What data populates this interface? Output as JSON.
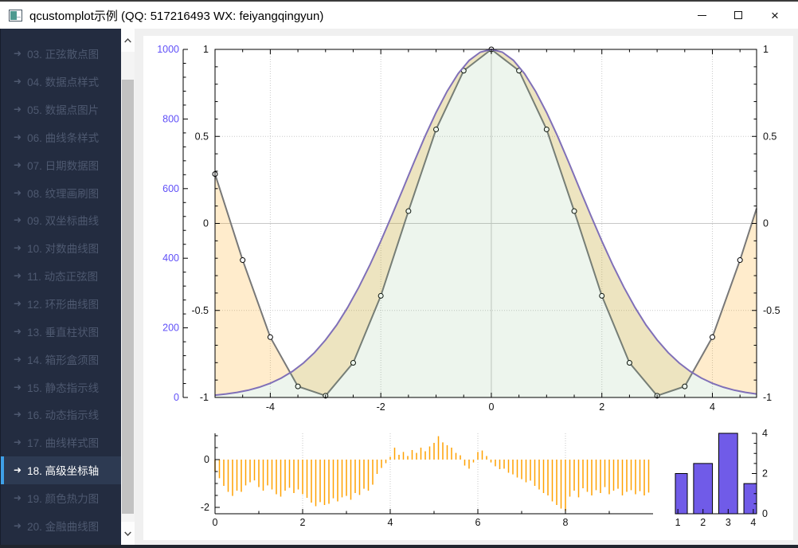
{
  "window": {
    "title": "qcustomplot示例 (QQ: 517216493 WX: feiyangqingyun)",
    "controls": [
      "minimize",
      "maximize",
      "close"
    ],
    "close_glyph": "×"
  },
  "sidebar": {
    "arrow_glyph": "➜",
    "colors": {
      "bg": "#232c40",
      "item_text": "#4e5970",
      "selected_bg": "#2d3a52",
      "selected_text": "#ffffff",
      "accent": "#3fa0e8"
    },
    "items": [
      {
        "label": "03. 正弦散点图",
        "selected": false
      },
      {
        "label": "04. 数据点样式",
        "selected": false
      },
      {
        "label": "05. 数据点图片",
        "selected": false
      },
      {
        "label": "06. 曲线条样式",
        "selected": false
      },
      {
        "label": "07. 日期数据图",
        "selected": false
      },
      {
        "label": "08. 纹理画刷图",
        "selected": false
      },
      {
        "label": "09. 双坐标曲线",
        "selected": false
      },
      {
        "label": "10. 对数曲线图",
        "selected": false
      },
      {
        "label": "11. 动态正弦图",
        "selected": false
      },
      {
        "label": "12. 环形曲线图",
        "selected": false
      },
      {
        "label": "13. 垂直柱状图",
        "selected": false
      },
      {
        "label": "14. 箱形盒须图",
        "selected": false
      },
      {
        "label": "15. 静态指示线",
        "selected": false
      },
      {
        "label": "16. 动态指示线",
        "selected": false
      },
      {
        "label": "17. 曲线样式图",
        "selected": false
      },
      {
        "label": "18. 高级坐标轴",
        "selected": true
      },
      {
        "label": "19. 颜色热力图",
        "selected": false
      },
      {
        "label": "20. 金融曲线图",
        "selected": false
      }
    ]
  },
  "chart_data": [
    {
      "type": "line",
      "name": "main-advanced-axes-plot",
      "x_range": [
        -5,
        4.8
      ],
      "x_ticks": [
        -4,
        -2,
        0,
        2,
        4
      ],
      "x_tick_labels": [
        "-4",
        "-2",
        "0",
        "2",
        "4"
      ],
      "left_inner_axis": {
        "range": [
          -1,
          1
        ],
        "ticks": [
          1,
          0.5,
          0,
          -0.5,
          -1
        ],
        "labels": [
          "1",
          "0.5",
          "0",
          "-0.5",
          "-1"
        ]
      },
      "left_outer_axis": {
        "range": [
          0,
          1000
        ],
        "ticks": [
          1000,
          800,
          600,
          400,
          200,
          0
        ],
        "labels": [
          "1000",
          "800",
          "600",
          "400",
          "200",
          "0"
        ],
        "label_color": "#6050F8"
      },
      "right_axis": {
        "ticks": [
          1,
          0.5,
          0,
          -0.5,
          -1
        ],
        "labels": [
          "1",
          "0.5",
          "0",
          "-0.5",
          "-1"
        ]
      },
      "channel_fill": "rgba(255,161,0,0.2)",
      "grid": "dotted, solid zero lines",
      "series": [
        {
          "name": "cos",
          "axis": "left_inner",
          "pen": "#787878",
          "marker": "circle-white-black-edge",
          "x": [
            -5,
            -4.5,
            -4,
            -3.5,
            -3,
            -2.5,
            -2,
            -1.5,
            -1,
            -0.5,
            0,
            0.5,
            1,
            1.5,
            2,
            2.5,
            3,
            3.5,
            4,
            4.5,
            5
          ],
          "y": [
            0.2837,
            -0.2108,
            -0.6536,
            -0.9365,
            -0.99,
            -0.8011,
            -0.4161,
            0.0707,
            0.5403,
            0.8776,
            1,
            0.8776,
            0.5403,
            0.0707,
            -0.4161,
            -0.8011,
            -0.99,
            -0.9365,
            -0.6536,
            -0.2108,
            0.2837
          ]
        },
        {
          "name": "gauss",
          "axis": "left_outer",
          "pen": "#8070B8",
          "fill": "rgba(110,170,110,0.12)",
          "x": [
            -5,
            -4.8,
            -4.6,
            -4.4,
            -4.2,
            -4,
            -3.8,
            -3.6,
            -3.4,
            -3.2,
            -3,
            -2.8,
            -2.6,
            -2.4,
            -2.2,
            -2,
            -1.8,
            -1.6,
            -1.4,
            -1.2,
            -1,
            -0.8,
            -0.6,
            -0.4,
            -0.2,
            0,
            0.2,
            0.4,
            0.6,
            0.8,
            1,
            1.2,
            1.4,
            1.6,
            1.8,
            2,
            2.2,
            2.4,
            2.6,
            2.8,
            3,
            3.2,
            3.4,
            3.6,
            3.8,
            4,
            4.2,
            4.4,
            4.6,
            4.8
          ],
          "y": [
            6.7,
            10,
            14.5,
            20.8,
            29.4,
            40.8,
            55.7,
            74.9,
            99,
            128.9,
            165.3,
            207.9,
            258.7,
            316.2,
            379.9,
            449.3,
            523,
            598.8,
            675.7,
            750.1,
            818.7,
            879.7,
            930.5,
            968.5,
            992,
            1000,
            992,
            968.5,
            930.5,
            879.7,
            818.7,
            750.1,
            675.7,
            598.8,
            523,
            449.3,
            379.9,
            316.2,
            258.7,
            207.9,
            165.3,
            128.9,
            99,
            74.9,
            55.7,
            40.8,
            29.4,
            20.8,
            14.5,
            10
          ]
        }
      ]
    },
    {
      "type": "impulse",
      "name": "random-walk-stem-subplot",
      "pen": "#FFA100",
      "x_range": [
        0,
        10
      ],
      "y_range": [
        -2.3,
        1.1
      ],
      "x_ticks": [
        0,
        2,
        4,
        6,
        8
      ],
      "x_tick_labels": [
        "0",
        "2",
        "4",
        "6",
        "8"
      ],
      "y_ticks": [
        0,
        -2
      ],
      "y_tick_labels": [
        "0",
        "-2"
      ],
      "x_start": 0,
      "x_step": 0.1,
      "values": [
        -0.5,
        -0.78,
        -1.1,
        -1.35,
        -1.52,
        -1.3,
        -1.35,
        -1.08,
        -0.95,
        -0.87,
        -1.15,
        -1.3,
        -1.08,
        -1.25,
        -1.45,
        -1.55,
        -1.3,
        -1.18,
        -1.4,
        -1.25,
        -1.45,
        -1.6,
        -1.8,
        -1.95,
        -1.78,
        -1.9,
        -1.85,
        -1.62,
        -1.75,
        -1.58,
        -1.52,
        -1.68,
        -1.4,
        -1.48,
        -1.22,
        -1.3,
        -1.05,
        -0.6,
        -0.35,
        -0.15,
        0.12,
        0.5,
        0.2,
        0.32,
        0.15,
        0.4,
        0.28,
        0.5,
        0.35,
        0.55,
        0.7,
        0.98,
        0.72,
        0.6,
        0.5,
        0.28,
        0.18,
        -0.25,
        -0.38,
        -0.12,
        0.32,
        0.38,
        0.15,
        -0.12,
        -0.28,
        -0.4,
        -0.38,
        -0.55,
        -0.62,
        -0.75,
        -0.82,
        -0.95,
        -0.88,
        -1.1,
        -1.25,
        -1.4,
        -1.5,
        -1.75,
        -1.9,
        -2.05,
        -2.15,
        -1.55,
        -1.3,
        -1.58,
        -1.2,
        -1.35,
        -1.5,
        -1.28,
        -1.4,
        -1.15,
        -1.45,
        -1.3,
        -1.22,
        -1.5,
        -1.35,
        -1.28,
        -1.45,
        -1.32,
        -1.5,
        -1.38
      ]
    },
    {
      "type": "bar",
      "name": "bar-subplot",
      "fill": "#705BE8",
      "pen": "#000000",
      "categories": [
        1,
        2,
        3,
        4
      ],
      "values": [
        2,
        2.5,
        4,
        1.5
      ],
      "bar_width": 0.75,
      "x_tick_labels": [
        "1",
        "2",
        "3",
        "4"
      ],
      "y_ticks": [
        4,
        2,
        0
      ],
      "y_tick_labels": [
        "4",
        "2",
        "0"
      ],
      "y_range": [
        0,
        4
      ],
      "x_range": [
        0.9,
        4.13
      ]
    }
  ]
}
